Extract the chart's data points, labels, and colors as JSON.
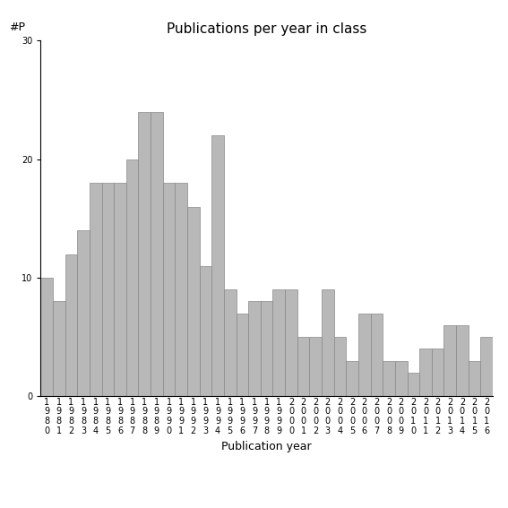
{
  "title": "Publications per year in class",
  "xlabel": "Publication year",
  "ylabel": "#P",
  "years": [
    1980,
    1981,
    1982,
    1983,
    1984,
    1985,
    1986,
    1987,
    1988,
    1989,
    1990,
    1991,
    1992,
    1993,
    1994,
    1995,
    1996,
    1997,
    1998,
    1999,
    2000,
    2001,
    2002,
    2003,
    2004,
    2005,
    2006,
    2007,
    2008,
    2009,
    2010,
    2011,
    2012,
    2013,
    2014,
    2015,
    2016
  ],
  "values": [
    10,
    8,
    12,
    14,
    18,
    18,
    18,
    20,
    24,
    24,
    18,
    18,
    16,
    11,
    22,
    9,
    7,
    8,
    8,
    9,
    9,
    5,
    5,
    9,
    5,
    3,
    7,
    7,
    3,
    3,
    2,
    4,
    4,
    6,
    6,
    3,
    5
  ],
  "bar_color": "#b8b8b8",
  "bar_edge_color": "#888888",
  "ylim": [
    0,
    30
  ],
  "yticks": [
    0,
    10,
    20,
    30
  ],
  "figsize": [
    5.67,
    5.67
  ],
  "dpi": 100,
  "title_fontsize": 11,
  "axis_label_fontsize": 9,
  "tick_fontsize": 7
}
